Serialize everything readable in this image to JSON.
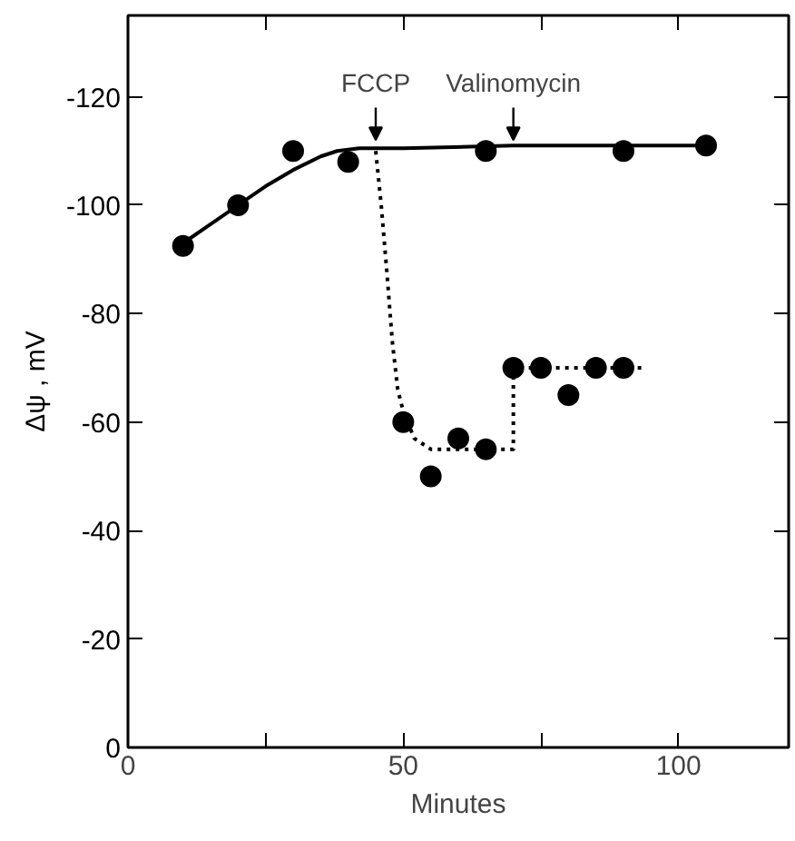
{
  "chart_data": {
    "type": "scatter",
    "xlabel": "Minutes",
    "ylabel": "Δψ , mV",
    "xlim": [
      0,
      120
    ],
    "ylim": [
      0,
      -135
    ],
    "xticks": [
      0,
      {
        "value": 25,
        "label": null
      },
      50,
      {
        "value": 75,
        "label": null
      },
      100
    ],
    "yticks": [
      0,
      -20,
      -40,
      -60,
      -80,
      -100,
      -120
    ],
    "grid": false,
    "marker": "circle",
    "series": [
      {
        "color": "#000000",
        "x": [
          10,
          20,
          30,
          40,
          65,
          90,
          105
        ],
        "values": [
          -92.5,
          -100,
          -110,
          -108,
          -110,
          -110,
          -111
        ]
      },
      {
        "color": "#000000",
        "x": [
          50,
          55,
          60,
          65,
          70,
          75,
          80,
          85,
          90
        ],
        "values": [
          -60,
          -50,
          -57,
          -55,
          -70,
          -70,
          -65,
          -70,
          -70
        ]
      },
      {
        "type": "line",
        "marker": "none",
        "line_style": "solid",
        "color": "#000000",
        "x": [
          10,
          15,
          20,
          25,
          30,
          35,
          38,
          42,
          50,
          70,
          105
        ],
        "values": [
          -93,
          -96.5,
          -100,
          -103.5,
          -106.5,
          -109,
          -110,
          -110.5,
          -110.5,
          -111,
          -111
        ]
      },
      {
        "type": "line",
        "marker": "none",
        "line_style": "dotted",
        "color": "#000000",
        "x": [
          45,
          46,
          47,
          48,
          49,
          50,
          52,
          55,
          60,
          70,
          70,
          75,
          94
        ],
        "values": [
          -110,
          -100,
          -88,
          -75,
          -66,
          -62,
          -57,
          -55,
          -55,
          -55,
          -70,
          -70,
          -70
        ]
      }
    ],
    "annotations": [
      {
        "text": "FCCP",
        "x": 45,
        "y": -112
      },
      {
        "text": "Valinomycin",
        "x": 70,
        "y": -112
      }
    ]
  }
}
